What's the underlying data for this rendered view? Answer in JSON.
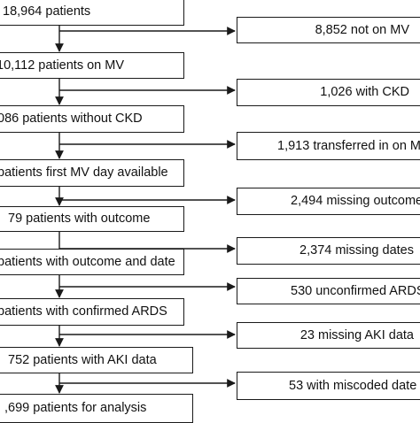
{
  "main_boxes": [
    {
      "text": "18,964 patients"
    },
    {
      "text": "10,112 patients on MV"
    },
    {
      "text": "086 patients without CKD"
    },
    {
      "text": "patients first MV day available"
    },
    {
      "text": "79 patients with outcome"
    },
    {
      "text": "patients with outcome and date"
    },
    {
      "text": "patients with confirmed ARDS"
    },
    {
      "text": "752 patients with AKI data"
    },
    {
      "text": ",699 patients for analysis"
    }
  ],
  "exclusion_boxes": [
    {
      "text": "8,852 not on MV"
    },
    {
      "text": "1,026 with CKD"
    },
    {
      "text": "1,913 transferred in on M"
    },
    {
      "text": "2,494 missing outcome"
    },
    {
      "text": "2,374 missing dates"
    },
    {
      "text": "530 unconfirmed ARDS"
    },
    {
      "text": "23 missing AKI data"
    },
    {
      "text": "53 with miscoded date"
    }
  ]
}
